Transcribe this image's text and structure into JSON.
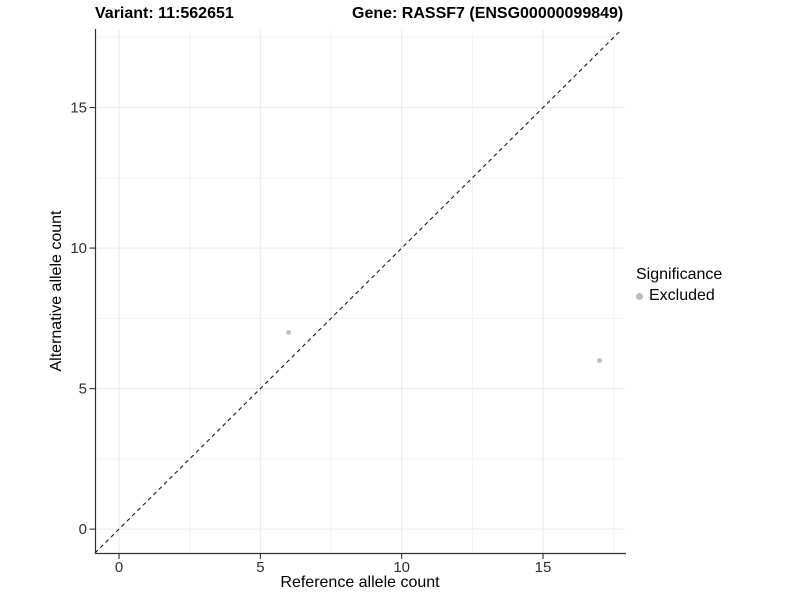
{
  "header": {
    "variant_title": "Variant: 11:562651",
    "gene_title": "Gene: RASSF7 (ENSG00000099849)"
  },
  "chart_data": {
    "type": "scatter",
    "xlabel": "Reference allele count",
    "ylabel": "Alternative allele count",
    "xlim": [
      -0.85,
      17.9
    ],
    "ylim": [
      -0.85,
      17.76
    ],
    "x_ticks": [
      0,
      5,
      10,
      15
    ],
    "x_tick_labels": [
      "0",
      "5",
      "10",
      "15"
    ],
    "y_ticks": [
      0,
      5,
      10,
      15
    ],
    "y_tick_labels": [
      "0",
      "5",
      "10",
      "15"
    ],
    "x_minor_gridlines": [
      2.5,
      7.5,
      12.5,
      17.5
    ],
    "y_minor_gridlines": [
      2.5,
      7.5,
      12.5,
      17.5
    ],
    "grid": true,
    "identity_line": {
      "style": "dashed",
      "equation": "y = x",
      "color": "#1a1a1a"
    },
    "series": [
      {
        "name": "Excluded",
        "color": "#bebebe",
        "points": [
          {
            "x": 6,
            "y": 7
          },
          {
            "x": 17,
            "y": 6
          }
        ]
      }
    ],
    "legend": {
      "title": "Significance",
      "position": "right",
      "items": [
        {
          "label": "Excluded",
          "color": "#bebebe"
        }
      ]
    },
    "colors": {
      "background": "#ffffff",
      "grid_major": "#e9e9e9",
      "grid_minor": "#f3f3f3",
      "axis_line": "#333333",
      "tick_label": "#303030"
    }
  }
}
